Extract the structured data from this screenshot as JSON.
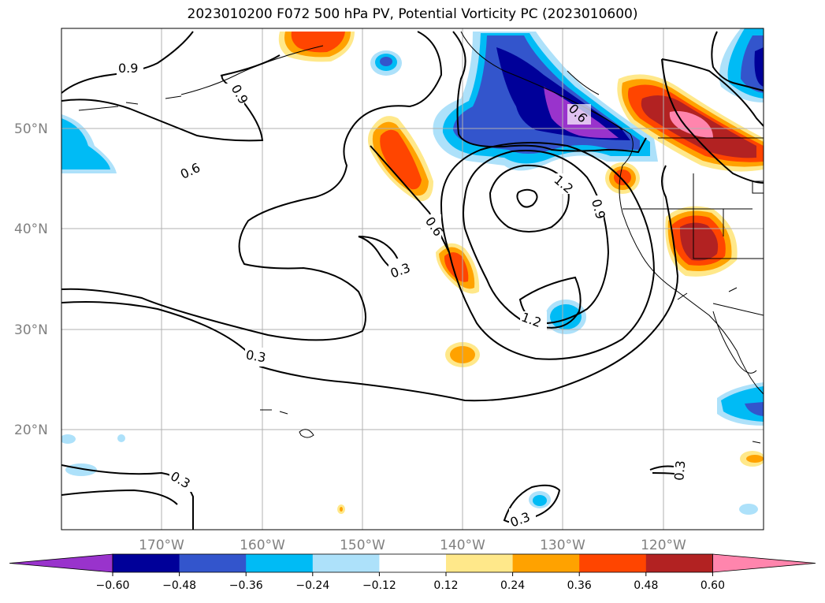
{
  "title": "2023010200 F072 500 hPa PV, Potential Vorticity PC (2023010600)",
  "map": {
    "type": "filled-contour",
    "projection": "PlateCarree",
    "lon_range": [
      -180,
      -110
    ],
    "lat_range": [
      10,
      60
    ],
    "lat_ticks": [
      "50°N",
      "40°N",
      "30°N",
      "20°N"
    ],
    "lon_ticks": [
      "170°W",
      "160°W",
      "150°W",
      "140°W",
      "130°W",
      "120°W"
    ],
    "grid": true
  },
  "contour_labels": [
    "0.9",
    "0.9",
    "0.6",
    "0.6",
    "0.3",
    "1.2",
    "0.9",
    "0.6",
    "1.2",
    "0.3",
    "0.3",
    "0.3",
    "0.3"
  ],
  "colorbar": {
    "ticks": [
      "−0.60",
      "−0.48",
      "−0.36",
      "−0.24",
      "−0.12",
      "0.12",
      "0.24",
      "0.36",
      "0.48",
      "0.60"
    ],
    "colors": [
      "#9933cc",
      "#000099",
      "#3355cc",
      "#00bbf5",
      "#ade1fa",
      "#ffffff",
      "#ffe88a",
      "#ffa200",
      "#ff4500",
      "#b22222",
      "#ff85ad",
      "#ff85ad"
    ],
    "extend": "both"
  }
}
